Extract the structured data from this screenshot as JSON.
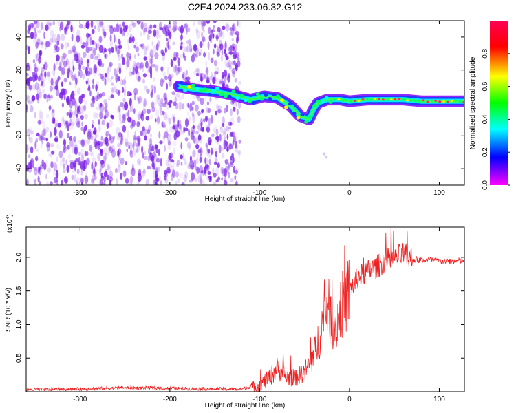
{
  "title": "C2E4.2024.233.06.32.G12",
  "chart_data": [
    {
      "type": "heatmap",
      "xlabel": "Height of straight line (km)",
      "ylabel": "Frequency (Hz)",
      "xlim": [
        -360,
        128
      ],
      "ylim": [
        -50,
        50
      ],
      "x_ticks": [
        -300,
        -200,
        -100,
        0,
        100
      ],
      "y_ticks": [
        -40,
        -20,
        0,
        20,
        40
      ],
      "colorbar": {
        "label": "Normalized spectral amplitude",
        "range": [
          0,
          1
        ],
        "ticks": [
          "0.0",
          "0.2",
          "0.4",
          "0.6",
          "0.8"
        ],
        "colormap": [
          "#ff00ff",
          "#0000ff",
          "#00ffff",
          "#00ff00",
          "#ffff00",
          "#ff0000",
          "#ff0055"
        ]
      },
      "noise_region": {
        "x_from": -360,
        "x_to": -130,
        "color": "#7a1fe6"
      },
      "ridge": {
        "x": [
          -190,
          -170,
          -150,
          -130,
          -110,
          -95,
          -80,
          -65,
          -55,
          -45,
          -40,
          -35,
          -25,
          -10,
          0,
          20,
          40,
          60,
          80,
          100,
          128
        ],
        "frequency": [
          10,
          8,
          7,
          5,
          2,
          4,
          3,
          -2,
          -8,
          -10,
          -4,
          0,
          2,
          2,
          1,
          2,
          2,
          2,
          1,
          1,
          1
        ]
      },
      "grid": false
    },
    {
      "type": "line",
      "xlabel": "Height of straight line (km)",
      "ylabel": "SNR (10 * v/v)",
      "y_exponent_label": "(x10",
      "y_exponent_value": "4",
      "y_exponent_close": ")",
      "xlim": [
        -360,
        128
      ],
      "ylim": [
        0,
        2.45
      ],
      "x_ticks": [
        -300,
        -200,
        -100,
        0,
        100
      ],
      "y_ticks": [
        "0.5",
        "1.0",
        "1.5",
        "2.0"
      ],
      "series": [
        {
          "color": "#ee2222",
          "x": [
            -360,
            -300,
            -250,
            -200,
            -150,
            -120,
            -100,
            -90,
            -80,
            -70,
            -60,
            -50,
            -40,
            -30,
            -25,
            -20,
            -15,
            -10,
            -5,
            0,
            10,
            20,
            30,
            40,
            50,
            60,
            70,
            80,
            90,
            100,
            110,
            128
          ],
          "values": [
            0.03,
            0.04,
            0.06,
            0.05,
            0.04,
            0.04,
            0.1,
            0.2,
            0.35,
            0.22,
            0.2,
            0.3,
            0.5,
            1.0,
            1.3,
            1.05,
            1.0,
            1.25,
            1.35,
            1.5,
            1.7,
            1.8,
            1.85,
            1.95,
            2.0,
            2.05,
            1.97,
            1.96,
            1.96,
            1.95,
            1.94,
            1.95
          ]
        }
      ],
      "grid": false
    }
  ]
}
